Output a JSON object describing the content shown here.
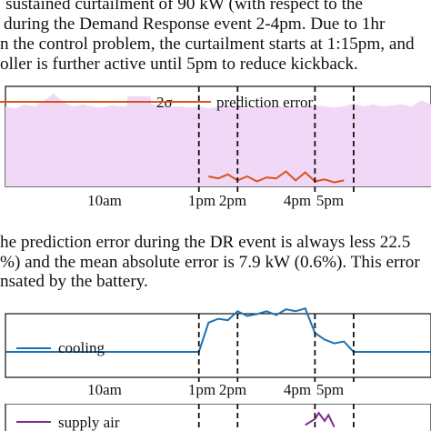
{
  "paper": {
    "paragraph_top": [
      "; sustained curtailment of 90 kW (with respect to the",
      "during the Demand Response event 2-4pm. Due to 1hr",
      "n the control problem, the curtailment starts at 1:15pm, and",
      "oller is further active until 5pm to reduce kickback."
    ],
    "paragraph_mid": [
      "he prediction error during the DR event is always less 22.5",
      "%) and the mean absolute error is 7.9 kW (0.6%). This error",
      "nsated by the battery."
    ]
  },
  "colors": {
    "band_fill": "#f2d8f7",
    "prediction_error": "#d9541a",
    "cooling": "#1a72b5",
    "supply_air": "#7a2e8e"
  },
  "chart_data": [
    {
      "type": "area",
      "legend": [
        "2σ",
        "prediction error"
      ],
      "legend_position": "top-center",
      "x_tick_labels": [
        "10am",
        "1pm",
        "2pm",
        "4pm",
        "5pm"
      ],
      "event_markers": [
        "1pm",
        "2pm",
        "4pm",
        "5pm"
      ],
      "x_range_hours": [
        8,
        19
      ],
      "series": [
        {
          "name": "2σ",
          "x": [
            8.0,
            8.25,
            8.5,
            8.75,
            9.0,
            9.25,
            9.5,
            9.75,
            10.0,
            10.25,
            10.5,
            10.75,
            11.0,
            11.25,
            11.5,
            11.75,
            12.0,
            12.25,
            12.5,
            12.75,
            13.0,
            13.25,
            13.5,
            13.75,
            14.0,
            14.25,
            14.5,
            14.75,
            15.0,
            15.25,
            15.5,
            15.75,
            16.0,
            16.25,
            16.5,
            16.75,
            17.0,
            17.25,
            17.5,
            17.75,
            18.0,
            18.25,
            18.5,
            18.75,
            19.0
          ],
          "values": [
            0.8,
            0.78,
            0.82,
            0.8,
            0.86,
            0.93,
            0.84,
            0.8,
            0.82,
            0.8,
            0.79,
            0.81,
            0.8,
            0.81,
            0.8,
            0.82,
            0.81,
            0.8,
            0.8,
            0.79,
            0.8,
            0.78,
            0.8,
            0.81,
            0.79,
            0.78,
            0.8,
            0.79,
            0.8,
            0.8,
            0.79,
            0.8,
            0.81,
            0.8,
            0.79,
            0.8,
            0.83,
            0.8,
            0.82,
            0.8,
            0.81,
            0.82,
            0.8,
            0.86,
            0.82
          ]
        },
        {
          "name": "prediction error",
          "x": [
            13.25,
            13.5,
            13.75,
            14.0,
            14.25,
            14.5,
            14.75,
            15.0,
            15.25,
            15.5,
            15.75,
            16.0,
            16.25,
            16.5,
            16.75
          ],
          "values": [
            0.1,
            0.08,
            0.12,
            0.06,
            0.1,
            0.05,
            0.09,
            0.08,
            0.15,
            0.06,
            0.14,
            0.05,
            0.07,
            0.04,
            0.06
          ]
        }
      ]
    },
    {
      "type": "line",
      "legend": [
        "cooling"
      ],
      "legend_position": "left",
      "x_tick_labels": [
        "10am",
        "1pm",
        "2pm",
        "4pm",
        "5pm"
      ],
      "event_markers": [
        "1pm",
        "2pm",
        "4pm",
        "5pm"
      ],
      "x_range_hours": [
        8,
        19
      ],
      "series": [
        {
          "name": "cooling",
          "x": [
            8.0,
            13.0,
            13.25,
            13.5,
            13.75,
            14.0,
            14.25,
            14.5,
            14.75,
            15.0,
            15.25,
            15.5,
            15.75,
            16.0,
            16.25,
            16.5,
            16.75,
            17.0,
            19.0
          ],
          "values": [
            0.0,
            0.0,
            0.62,
            0.7,
            0.67,
            0.86,
            0.76,
            0.8,
            0.86,
            0.78,
            0.9,
            0.86,
            0.92,
            0.4,
            0.26,
            0.18,
            0.22,
            0.0,
            0.0
          ]
        }
      ]
    },
    {
      "type": "line",
      "legend": [
        "supply air"
      ],
      "legend_position": "left",
      "x_range_hours": [
        8,
        19
      ],
      "series": [
        {
          "name": "supply air",
          "x": [
            15.75,
            16.0,
            16.1,
            16.25,
            16.35,
            16.5
          ],
          "values": [
            0.3,
            0.6,
            0.9,
            0.5,
            0.8,
            0.2
          ]
        }
      ]
    }
  ]
}
